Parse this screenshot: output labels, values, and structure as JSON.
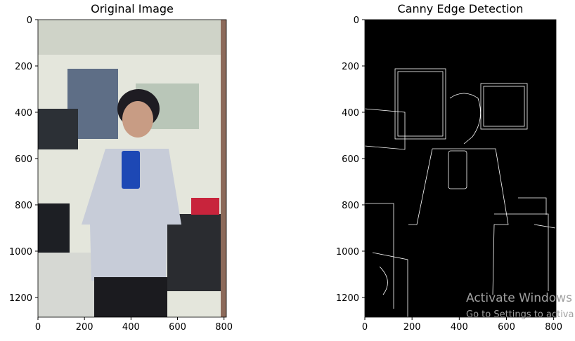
{
  "chart_data": [
    {
      "type": "image",
      "title": "Original Image",
      "xlim": [
        0,
        810
      ],
      "ylim": [
        1285,
        0
      ],
      "xticks": [
        0,
        200,
        400,
        600,
        800
      ],
      "yticks": [
        0,
        200,
        400,
        600,
        800,
        1000,
        1200
      ]
    },
    {
      "type": "image",
      "title": "Canny Edge Detection",
      "xlim": [
        0,
        810
      ],
      "ylim": [
        1285,
        0
      ],
      "xticks": [
        0,
        200,
        400,
        600,
        800
      ],
      "yticks": [
        0,
        200,
        400,
        600,
        800,
        1000,
        1200
      ]
    }
  ],
  "watermark": {
    "title": "Activate Windows",
    "subtitle": "Go to Settings to activa"
  }
}
